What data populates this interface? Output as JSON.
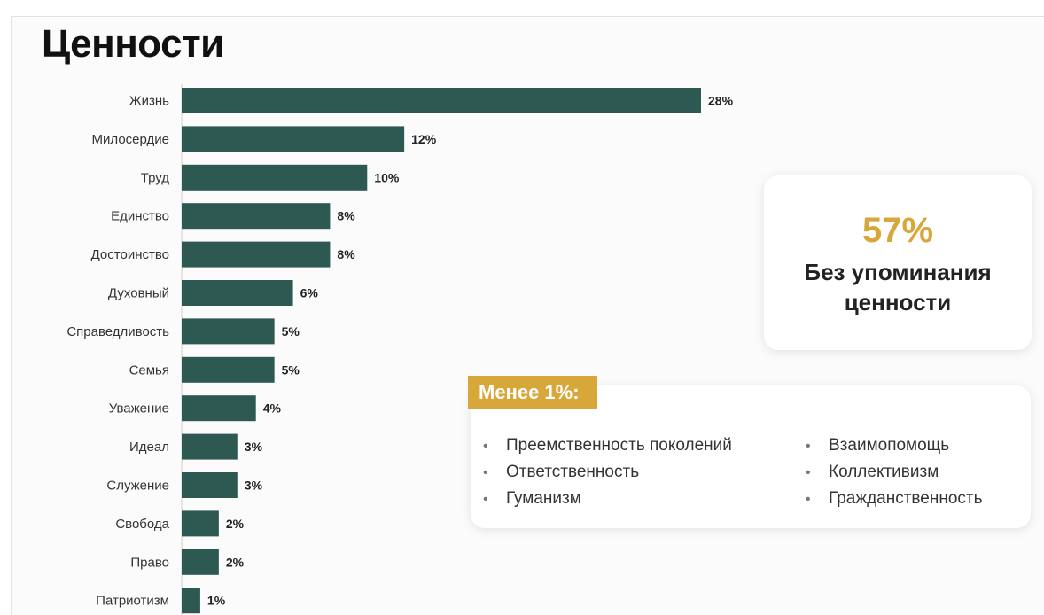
{
  "title": "Ценности",
  "chart_data": {
    "type": "bar",
    "orientation": "horizontal",
    "categories": [
      "Жизнь",
      "Милосердие",
      "Труд",
      "Единство",
      "Достоинство",
      "Духовный",
      "Справедливость",
      "Семья",
      "Уважение",
      "Идеал",
      "Служение",
      "Свобода",
      "Право",
      "Патриотизм"
    ],
    "values": [
      28,
      12,
      10,
      8,
      8,
      6,
      5,
      5,
      4,
      3,
      3,
      2,
      2,
      1
    ],
    "value_labels": [
      "28%",
      "12%",
      "10%",
      "8%",
      "8%",
      "6%",
      "5%",
      "5%",
      "4%",
      "3%",
      "3%",
      "2%",
      "2%",
      "1%"
    ],
    "unit": "%",
    "xlim": [
      0,
      28
    ],
    "grid": false,
    "legend": "none",
    "bar_color": "#2e5953",
    "title": "Ценности",
    "xlabel": "",
    "ylabel": ""
  },
  "summary": {
    "value": "57%",
    "label_line1": "Без упоминания",
    "label_line2": "ценности",
    "accent": "#d8a73a"
  },
  "less_than_1": {
    "heading": "Менее 1%:",
    "col1": [
      "Преемственность поколений",
      "Ответственность",
      "Гуманизм"
    ],
    "col2": [
      "Взаимопомощь",
      "Коллективизм",
      "Гражданственность"
    ]
  }
}
